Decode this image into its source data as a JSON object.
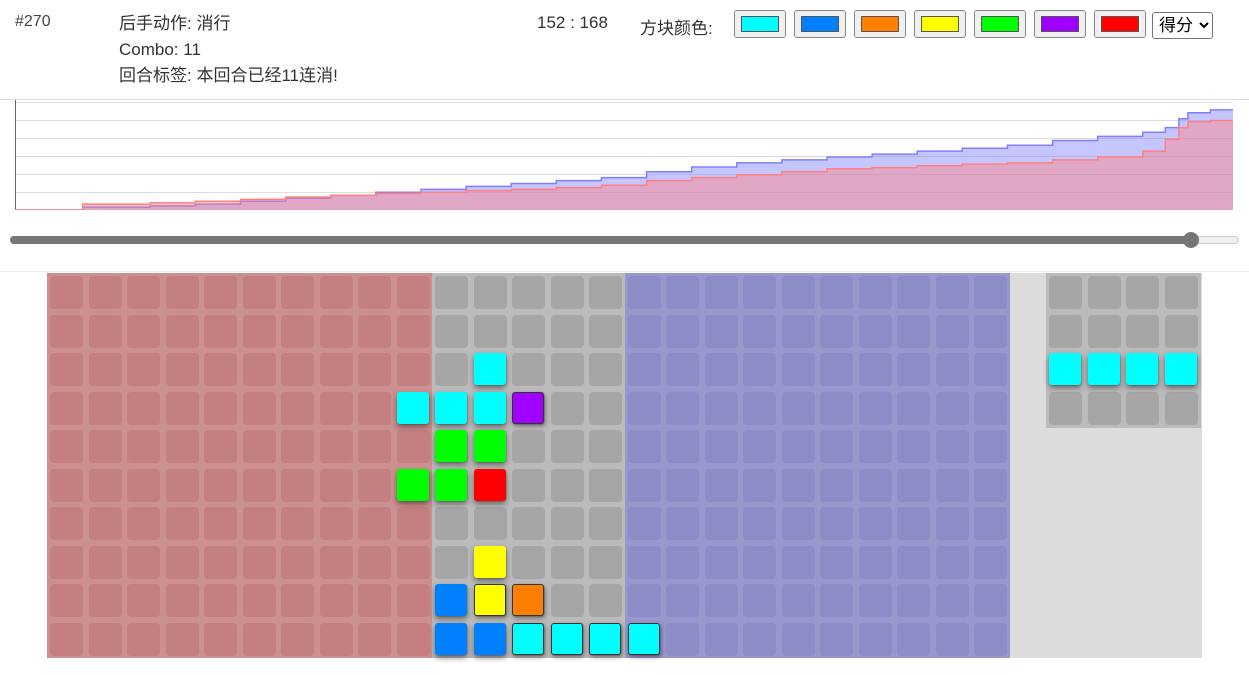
{
  "turn": "#270",
  "info": {
    "action": "后手动作: 消行",
    "combo": "Combo: 11",
    "tag": "回合标签: 本回合已经11连消!"
  },
  "score": "152 : 168",
  "color_label": "方块颜色:",
  "colors": [
    "#00ffff",
    "#0080ff",
    "#ff8000",
    "#ffff00",
    "#00ff00",
    "#a000ff",
    "#ff0000"
  ],
  "mode_select": {
    "selected": "得分",
    "options": [
      "得分"
    ]
  },
  "chart_data": {
    "type": "area",
    "title": "",
    "xlabel": "",
    "ylabel": "",
    "xlim": [
      0,
      270
    ],
    "ylim": [
      0,
      180
    ],
    "grid": true,
    "series": [
      {
        "color": "#8080ff",
        "points": [
          [
            0,
            0
          ],
          [
            10,
            0
          ],
          [
            15,
            5
          ],
          [
            30,
            7
          ],
          [
            40,
            10
          ],
          [
            50,
            15
          ],
          [
            60,
            20
          ],
          [
            70,
            25
          ],
          [
            80,
            30
          ],
          [
            90,
            35
          ],
          [
            100,
            40
          ],
          [
            110,
            45
          ],
          [
            120,
            50
          ],
          [
            130,
            55
          ],
          [
            140,
            65
          ],
          [
            150,
            73
          ],
          [
            160,
            80
          ],
          [
            170,
            85
          ],
          [
            180,
            90
          ],
          [
            190,
            95
          ],
          [
            200,
            100
          ],
          [
            210,
            105
          ],
          [
            220,
            110
          ],
          [
            230,
            118
          ],
          [
            240,
            125
          ],
          [
            250,
            132
          ],
          [
            255,
            140
          ],
          [
            258,
            155
          ],
          [
            260,
            165
          ],
          [
            265,
            170
          ],
          [
            270,
            170
          ]
        ]
      },
      {
        "color": "#ff8080",
        "points": [
          [
            0,
            0
          ],
          [
            10,
            0
          ],
          [
            15,
            10
          ],
          [
            30,
            12
          ],
          [
            40,
            15
          ],
          [
            50,
            18
          ],
          [
            60,
            22
          ],
          [
            70,
            25
          ],
          [
            80,
            28
          ],
          [
            90,
            30
          ],
          [
            100,
            33
          ],
          [
            110,
            35
          ],
          [
            120,
            38
          ],
          [
            130,
            42
          ],
          [
            140,
            50
          ],
          [
            150,
            55
          ],
          [
            160,
            60
          ],
          [
            170,
            65
          ],
          [
            180,
            70
          ],
          [
            190,
            72
          ],
          [
            200,
            75
          ],
          [
            210,
            78
          ],
          [
            220,
            80
          ],
          [
            230,
            85
          ],
          [
            240,
            90
          ],
          [
            250,
            100
          ],
          [
            255,
            120
          ],
          [
            258,
            140
          ],
          [
            260,
            150
          ],
          [
            265,
            152
          ],
          [
            270,
            152
          ]
        ]
      }
    ]
  },
  "slider": {
    "value": 270,
    "max": 281
  },
  "board": {
    "cols": 25,
    "rows": 10,
    "zones": [
      {
        "name": "player-zone",
        "from": 0,
        "to": 10,
        "bg": "#cc9090",
        "cell": "#c48080"
      },
      {
        "name": "shared-zone",
        "from": 10,
        "to": 15,
        "bg": "#bbbbbb",
        "cell": "#a6a6a6"
      },
      {
        "name": "opponent-zone",
        "from": 15,
        "to": 25,
        "bg": "#9898cc",
        "cell": "#8c8cc6"
      }
    ],
    "pieces": [
      {
        "c": 11,
        "r": 2,
        "color": 0,
        "lit": true
      },
      {
        "c": 9,
        "r": 3,
        "color": 0,
        "lit": true
      },
      {
        "c": 10,
        "r": 3,
        "color": 0,
        "lit": true
      },
      {
        "c": 11,
        "r": 3,
        "color": 0,
        "lit": true
      },
      {
        "c": 12,
        "r": 3,
        "color": 5
      },
      {
        "c": 10,
        "r": 4,
        "color": 4,
        "lit": true
      },
      {
        "c": 11,
        "r": 4,
        "color": 4,
        "lit": true
      },
      {
        "c": 9,
        "r": 5,
        "color": 4,
        "lit": true
      },
      {
        "c": 10,
        "r": 5,
        "color": 4,
        "lit": true
      },
      {
        "c": 11,
        "r": 5,
        "color": 6,
        "lit": true
      },
      {
        "c": 11,
        "r": 7,
        "color": 3,
        "lit": true
      },
      {
        "c": 10,
        "r": 8,
        "color": 1,
        "lit": true
      },
      {
        "c": 11,
        "r": 8,
        "color": 3
      },
      {
        "c": 12,
        "r": 8,
        "color": 2
      },
      {
        "c": 10,
        "r": 9,
        "color": 1,
        "lit": true
      },
      {
        "c": 11,
        "r": 9,
        "color": 1,
        "lit": true
      },
      {
        "c": 12,
        "r": 9,
        "color": 0
      },
      {
        "c": 13,
        "r": 9,
        "color": 0
      },
      {
        "c": 14,
        "r": 9,
        "color": 0
      },
      {
        "c": 15,
        "r": 9,
        "color": 0
      }
    ],
    "preview": {
      "cols": 4,
      "rows": 4,
      "pieces": [
        {
          "c": 0,
          "r": 2,
          "color": 0,
          "lit": true
        },
        {
          "c": 1,
          "r": 2,
          "color": 0,
          "lit": true
        },
        {
          "c": 2,
          "r": 2,
          "color": 0,
          "lit": true
        },
        {
          "c": 3,
          "r": 2,
          "color": 0,
          "lit": true
        }
      ]
    }
  }
}
